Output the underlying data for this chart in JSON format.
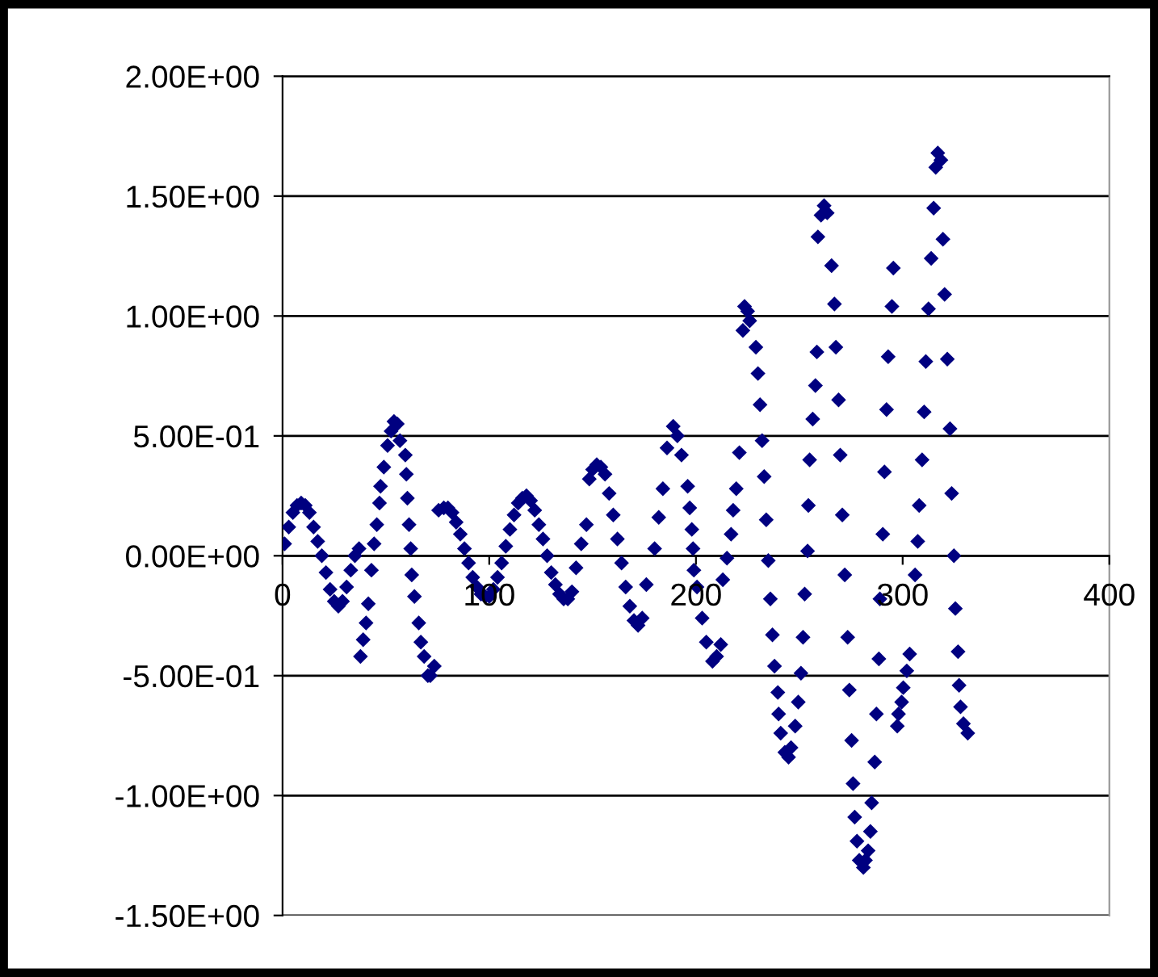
{
  "chart_data": {
    "type": "scatter",
    "marker": "diamond",
    "grid": "y",
    "xlim": [
      0,
      400
    ],
    "xticks": [
      0,
      100,
      200,
      300,
      400
    ],
    "ylim": [
      -1.5,
      2
    ],
    "yticks": [
      {
        "value": -1.5,
        "label": "-1.50E+00"
      },
      {
        "value": -1,
        "label": "-1.00E+00"
      },
      {
        "value": -0.5,
        "label": "-5.00E-01"
      },
      {
        "value": 0,
        "label": "0.00E+00"
      },
      {
        "value": 0.5,
        "label": "5.00E-01"
      },
      {
        "value": 1,
        "label": "1.00E+00"
      },
      {
        "value": 1.5,
        "label": "1.50E+00"
      },
      {
        "value": 2,
        "label": "2.00E+00"
      }
    ],
    "series": [
      {
        "color": "#000080",
        "x": [
          1,
          3,
          5,
          7,
          9,
          11,
          13,
          15,
          17,
          19,
          21,
          23,
          25,
          27,
          29,
          31,
          33,
          35,
          37,
          37.7,
          39,
          40.4,
          41.5,
          43,
          44.3,
          45.6,
          46.9,
          47.4,
          49,
          50.8,
          52.5,
          53.9,
          55.5,
          56.8,
          59.4,
          59.9,
          60.4,
          61.2,
          62,
          62.5,
          63.8,
          65.9,
          66.9,
          68.5,
          70.3,
          71.5,
          73.4,
          75.5,
          78,
          80,
          82,
          84,
          86,
          88,
          90,
          92,
          94,
          96,
          98,
          100,
          102,
          104,
          106,
          108,
          110,
          112,
          114,
          116,
          118,
          120,
          122,
          124,
          126,
          128,
          130,
          132,
          134,
          136,
          138,
          140,
          142,
          144.5,
          147,
          148.4,
          150,
          152,
          154,
          156,
          158,
          160,
          162,
          164,
          166,
          168,
          170,
          172,
          174,
          176,
          180,
          182,
          184,
          186,
          189,
          191,
          193,
          196,
          197,
          198,
          198.6,
          199,
          200.5,
          203,
          205,
          208,
          210,
          212,
          213,
          215,
          217,
          218,
          219.5,
          221,
          222.7,
          223.5,
          225,
          226,
          229,
          230,
          231,
          232,
          233,
          234,
          235,
          236,
          237,
          238,
          239.6,
          240,
          241,
          243,
          244.8,
          246,
          248,
          249.5,
          250.8,
          251.8,
          252.6,
          254,
          254.4,
          255,
          256.5,
          257.8,
          258.5,
          259,
          260.5,
          262,
          263.5,
          265.6,
          267,
          267.7,
          269,
          269.8,
          270.8,
          272,
          273.4,
          274.2,
          275.3,
          276,
          276.8,
          277.9,
          279,
          281,
          282,
          283.3,
          284.4,
          285,
          286.5,
          287.3,
          288.5,
          289,
          290.4,
          291.2,
          292.2,
          293,
          294.8,
          295.5,
          297.4,
          298,
          299.5,
          300.3,
          302,
          303.4,
          306,
          307.3,
          308,
          309.4,
          310.4,
          311.2,
          312.5,
          313.8,
          315,
          316,
          317,
          318.5,
          319.5,
          320.3,
          321.6,
          322.9,
          323.7,
          324.8,
          325.5,
          326.8,
          327.3,
          328,
          329.4,
          331.5
        ],
        "values": [
          0.05,
          0.12,
          0.18,
          0.21,
          0.22,
          0.21,
          0.18,
          0.12,
          0.06,
          0,
          -0.07,
          -0.14,
          -0.19,
          -0.21,
          -0.19,
          -0.13,
          -0.06,
          0,
          0.03,
          -0.42,
          -0.35,
          -0.28,
          -0.2,
          -0.06,
          0.05,
          0.13,
          0.22,
          0.29,
          0.37,
          0.46,
          0.52,
          0.56,
          0.55,
          0.48,
          0.42,
          0.34,
          0.24,
          0.13,
          0.03,
          -0.08,
          -0.17,
          -0.28,
          -0.36,
          -0.42,
          -0.5,
          -0.5,
          -0.46,
          0.19,
          0.2,
          0.2,
          0.18,
          0.14,
          0.09,
          0.03,
          -0.03,
          -0.09,
          -0.13,
          -0.16,
          -0.17,
          -0.17,
          -0.14,
          -0.09,
          -0.03,
          0.04,
          0.11,
          0.17,
          0.22,
          0.24,
          0.25,
          0.23,
          0.19,
          0.13,
          0.07,
          0,
          -0.07,
          -0.12,
          -0.16,
          -0.18,
          -0.18,
          -0.15,
          -0.05,
          0.05,
          0.13,
          0.32,
          0.36,
          0.38,
          0.37,
          0.34,
          0.26,
          0.17,
          0.07,
          -0.03,
          -0.13,
          -0.21,
          -0.27,
          -0.29,
          -0.26,
          -0.12,
          0.03,
          0.16,
          0.28,
          0.45,
          0.54,
          0.5,
          0.42,
          0.29,
          0.2,
          0.11,
          0.03,
          -0.06,
          -0.13,
          -0.26,
          -0.36,
          -0.44,
          -0.42,
          -0.37,
          -0.1,
          -0.01,
          0.09,
          0.19,
          0.28,
          0.43,
          0.94,
          1.04,
          1.02,
          0.98,
          0.87,
          0.76,
          0.63,
          0.48,
          0.33,
          0.15,
          -0.02,
          -0.18,
          -0.33,
          -0.46,
          -0.57,
          -0.66,
          -0.74,
          -0.82,
          -0.84,
          -0.8,
          -0.71,
          -0.61,
          -0.49,
          -0.34,
          -0.16,
          0.02,
          0.21,
          0.4,
          0.57,
          0.71,
          0.85,
          1.33,
          1.42,
          1.46,
          1.43,
          1.21,
          1.05,
          0.87,
          0.65,
          0.42,
          0.17,
          -0.08,
          -0.34,
          -0.56,
          -0.77,
          -0.95,
          -1.09,
          -1.19,
          -1.27,
          -1.3,
          -1.27,
          -1.23,
          -1.15,
          -1.03,
          -0.86,
          -0.66,
          -0.43,
          -0.18,
          0.09,
          0.35,
          0.61,
          0.83,
          1.04,
          1.2,
          -0.71,
          -0.66,
          -0.61,
          -0.55,
          -0.48,
          -0.41,
          -0.08,
          0.06,
          0.21,
          0.4,
          0.6,
          0.81,
          1.03,
          1.24,
          1.45,
          1.62,
          1.68,
          1.65,
          1.32,
          1.09,
          0.82,
          0.53,
          0.26,
          0,
          -0.22,
          -0.4,
          -0.54,
          -0.63,
          -0.7,
          -0.74
        ]
      }
    ]
  }
}
